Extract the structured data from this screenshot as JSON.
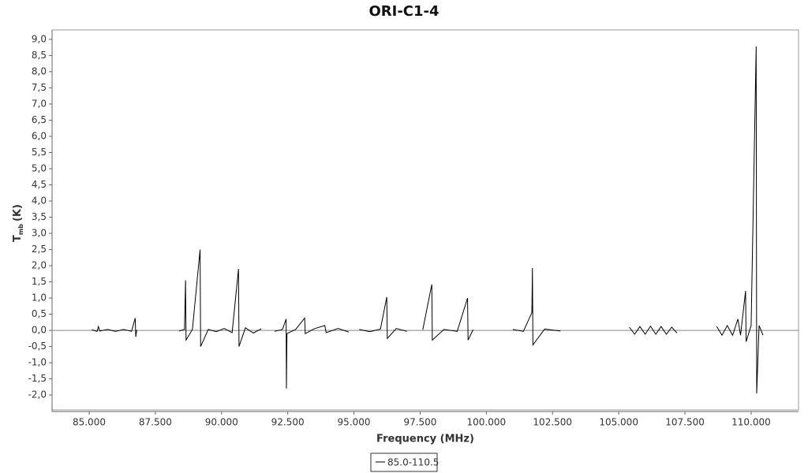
{
  "chart_data": {
    "type": "line",
    "title": "ORI-C1-4",
    "x_label": "Frequency (MHz)",
    "y_label": "T",
    "y_label_sub": "mb",
    "y_label_unit": "(K)",
    "xlim": [
      83600,
      111790
    ],
    "ylim": [
      -2.46,
      9.29
    ],
    "xticks": [
      {
        "value": 85000,
        "label": "85.000"
      },
      {
        "value": 87500,
        "label": "87.500"
      },
      {
        "value": 90000,
        "label": "90.000"
      },
      {
        "value": 92500,
        "label": "92.500"
      },
      {
        "value": 95000,
        "label": "95.000"
      },
      {
        "value": 97500,
        "label": "97.500"
      },
      {
        "value": 100000,
        "label": "100.000"
      },
      {
        "value": 102500,
        "label": "102.500"
      },
      {
        "value": 105000,
        "label": "105.000"
      },
      {
        "value": 107500,
        "label": "107.500"
      },
      {
        "value": 110000,
        "label": "110.000"
      }
    ],
    "yticks": [
      {
        "value": -2,
        "label": "-2,0"
      },
      {
        "value": -1.5,
        "label": "-1,5"
      },
      {
        "value": -1,
        "label": "-1,0"
      },
      {
        "value": -0.5,
        "label": "-0,5"
      },
      {
        "value": 0,
        "label": "0,0"
      },
      {
        "value": 0.5,
        "label": "0,5"
      },
      {
        "value": 1,
        "label": "1,0"
      },
      {
        "value": 1.5,
        "label": "1,5"
      },
      {
        "value": 2,
        "label": "2,0"
      },
      {
        "value": 2.5,
        "label": "2,5"
      },
      {
        "value": 3,
        "label": "3,0"
      },
      {
        "value": 3.5,
        "label": "3,5"
      },
      {
        "value": 4,
        "label": "4,0"
      },
      {
        "value": 4.5,
        "label": "4,5"
      },
      {
        "value": 5,
        "label": "5,0"
      },
      {
        "value": 5.5,
        "label": "5,5"
      },
      {
        "value": 6,
        "label": "6,0"
      },
      {
        "value": 6.5,
        "label": "6,5"
      },
      {
        "value": 7,
        "label": "7,0"
      },
      {
        "value": 7.5,
        "label": "7,5"
      },
      {
        "value": 8,
        "label": "8,0"
      },
      {
        "value": 8.5,
        "label": "8,5"
      },
      {
        "value": 9,
        "label": "9,0"
      }
    ],
    "legend": "bottom",
    "x": [
      85100,
      85300,
      85350,
      85400,
      85700,
      86000,
      86300,
      86600,
      86740,
      86760,
      86800,
      87500,
      88400,
      88600,
      88640,
      88660,
      88900,
      89190,
      89210,
      89500,
      89800,
      90100,
      90400,
      90640,
      90660,
      90900,
      91200,
      91500,
      91750,
      92000,
      92300,
      92440,
      92450,
      92470,
      92800,
      93140,
      93160,
      93500,
      93900,
      93950,
      94400,
      94800,
      95000,
      95200,
      95600,
      96000,
      96240,
      96260,
      96600,
      97000,
      97300,
      97600,
      97940,
      97960,
      98400,
      98900,
      99290,
      99310,
      99500,
      100200,
      101000,
      101400,
      101720,
      101740,
      101760,
      102200,
      102800,
      104000,
      105400,
      105600,
      105800,
      106000,
      106200,
      106400,
      106600,
      106800,
      107000,
      107200,
      108000,
      108700,
      108900,
      109100,
      109300,
      109500,
      109600,
      109790,
      109810,
      110000,
      110190,
      110210,
      110300,
      110450
    ],
    "series": [
      {
        "name": "85.0-110.5",
        "color": "#000000",
        "values": [
          0.02,
          -0.03,
          0.12,
          -0.02,
          0.03,
          -0.03,
          0.03,
          -0.03,
          0.38,
          -0.2,
          0.02,
          null,
          -0.02,
          0.03,
          1.55,
          -0.3,
          0.03,
          2.5,
          -0.5,
          0.03,
          -0.04,
          0.06,
          -0.07,
          1.9,
          -0.5,
          0.08,
          -0.08,
          0.05,
          null,
          -0.03,
          0.03,
          0.35,
          -1.8,
          -0.1,
          0.03,
          0.38,
          -0.1,
          0.05,
          0.15,
          -0.07,
          0.06,
          -0.05,
          null,
          0.03,
          -0.04,
          0.04,
          1.03,
          -0.25,
          0.06,
          -0.03,
          null,
          0.02,
          1.42,
          -0.3,
          0.03,
          -0.03,
          1.0,
          -0.3,
          0.02,
          null,
          0.03,
          -0.03,
          0.55,
          1.93,
          -0.45,
          0.04,
          -0.02,
          null,
          0.1,
          -0.12,
          0.12,
          -0.12,
          0.13,
          -0.12,
          0.12,
          -0.12,
          0.1,
          -0.08,
          null,
          0.12,
          -0.15,
          0.15,
          -0.15,
          0.35,
          -0.15,
          1.22,
          -0.35,
          0.15,
          8.78,
          -1.95,
          0.15,
          -0.15
        ]
      }
    ]
  }
}
